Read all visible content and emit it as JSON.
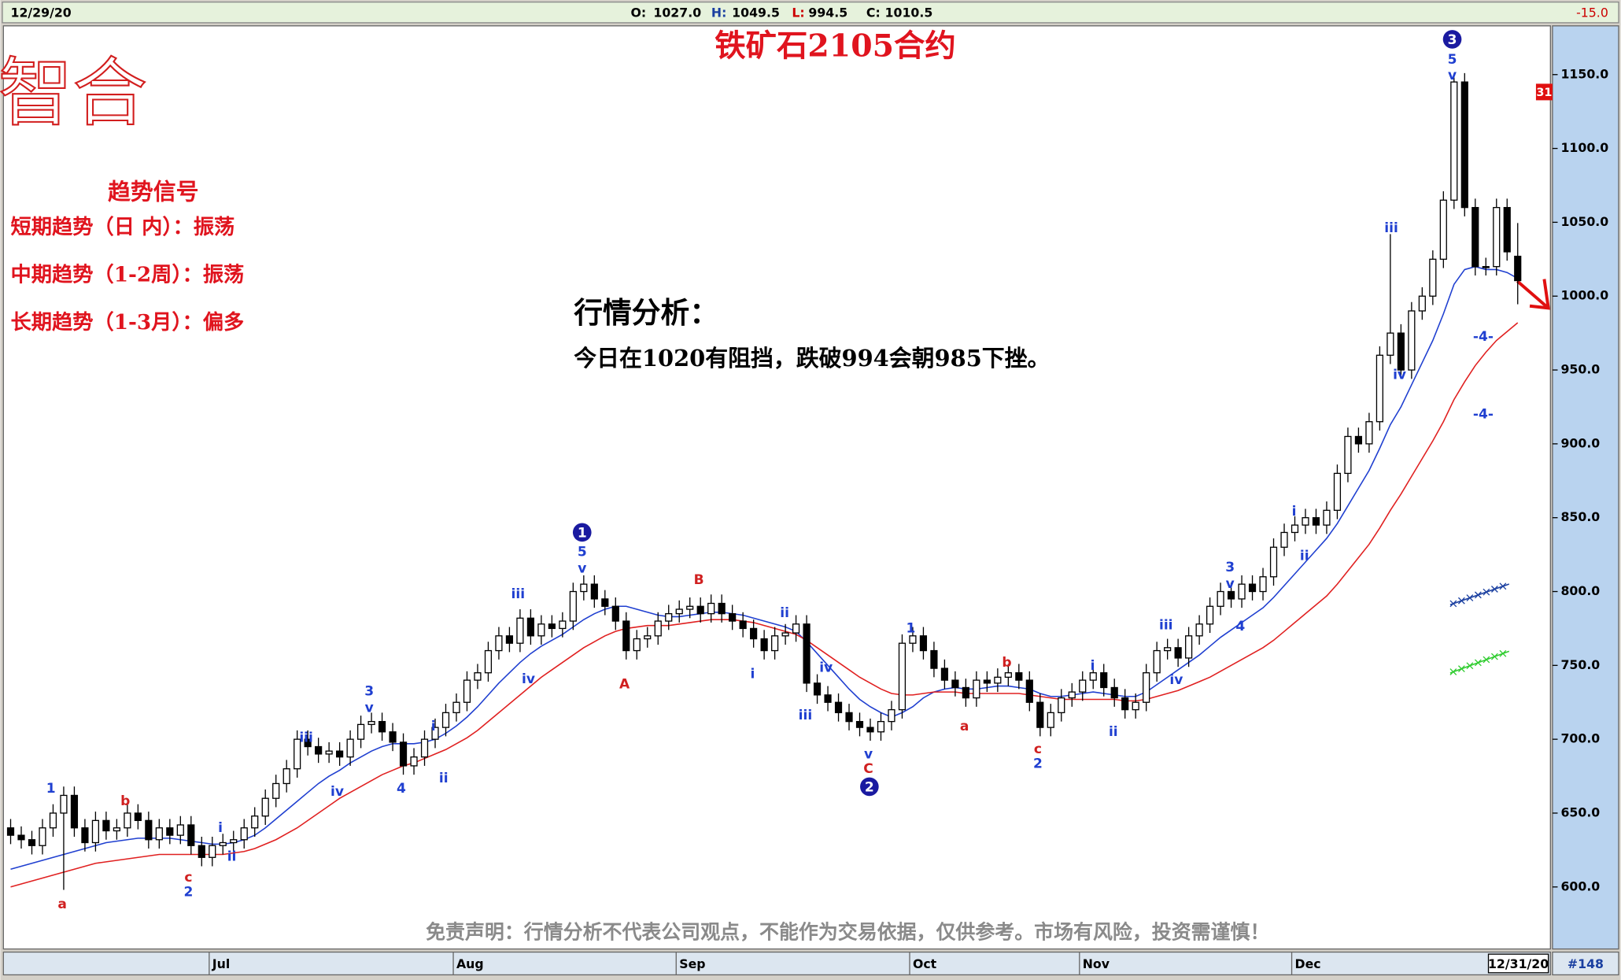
{
  "header": {
    "date": "12/29/20",
    "fields": [
      {
        "label": "O:",
        "value": "1027.0"
      },
      {
        "label": "H:",
        "value": "1049.5"
      },
      {
        "label": "L:",
        "value": "994.5"
      },
      {
        "label": "C:",
        "value": "1010.5"
      }
    ],
    "change": "-15.0"
  },
  "logo": "智合",
  "signals": {
    "title": "趋势信号",
    "items": [
      "短期趋势（日 内）：振荡",
      "中期趋势（1-2周）：振荡",
      "长期趋势（1-3月）：偏多"
    ]
  },
  "analysis": {
    "title": "行情分析：",
    "text": "今日在1020有阻挡，跌破994会朝985下挫。"
  },
  "disclaimer": "免责声明：行情分析不代表公司观点，不能作为交易依据，仅供参考。市场有风险，投资需谨慎！",
  "chart_data": {
    "type": "candlestick",
    "title": "铁矿石2105合约",
    "price_tag": "31",
    "end_date": "12/31/20",
    "bar_count": "#148",
    "up_color": "#ffffff",
    "down_color": "#000000",
    "ylim": [
      558,
      1183
    ],
    "yticks": [
      {
        "value": 600,
        "label": "600.0"
      },
      {
        "value": 650,
        "label": "650.0"
      },
      {
        "value": 700,
        "label": "700.0"
      },
      {
        "value": 750,
        "label": "750.0"
      },
      {
        "value": 800,
        "label": "800.0"
      },
      {
        "value": 850,
        "label": "850.0"
      },
      {
        "value": 900,
        "label": "900.0"
      },
      {
        "value": 950,
        "label": "950.0"
      },
      {
        "value": 1000,
        "label": "1000.0"
      },
      {
        "value": 1050,
        "label": "1050.0"
      },
      {
        "value": 1100,
        "label": "1100.0"
      },
      {
        "value": 1150,
        "label": "1150.0"
      }
    ],
    "categories": [
      null,
      null,
      null,
      null,
      null,
      null,
      null,
      null,
      null,
      null,
      null,
      null,
      null,
      null,
      null,
      null,
      null,
      null,
      null,
      "Jul",
      null,
      null,
      null,
      null,
      null,
      null,
      null,
      null,
      null,
      null,
      null,
      null,
      null,
      null,
      null,
      null,
      null,
      null,
      null,
      null,
      null,
      null,
      "Aug",
      null,
      null,
      null,
      null,
      null,
      null,
      null,
      null,
      null,
      null,
      null,
      null,
      null,
      null,
      null,
      null,
      null,
      null,
      null,
      null,
      "Sep",
      null,
      null,
      null,
      null,
      null,
      null,
      null,
      null,
      null,
      null,
      null,
      null,
      null,
      null,
      null,
      null,
      null,
      null,
      null,
      null,
      null,
      "Oct",
      null,
      null,
      null,
      null,
      null,
      null,
      null,
      null,
      null,
      null,
      null,
      null,
      null,
      null,
      null,
      "Nov",
      null,
      null,
      null,
      null,
      null,
      null,
      null,
      null,
      null,
      null,
      null,
      null,
      null,
      null,
      null,
      null,
      null,
      null,
      null,
      "Dec",
      null,
      null,
      null,
      null,
      null,
      null,
      null,
      null,
      null,
      null,
      null,
      null,
      null,
      null,
      null,
      null,
      null,
      null,
      null,
      null,
      null
    ],
    "open": [
      640,
      635,
      632,
      628,
      640,
      650,
      662,
      640,
      630,
      645,
      638,
      640,
      650,
      645,
      632,
      640,
      635,
      642,
      628,
      620,
      628,
      630,
      632,
      640,
      648,
      660,
      670,
      680,
      700,
      695,
      690,
      692,
      688,
      700,
      710,
      712,
      705,
      698,
      682,
      688,
      700,
      708,
      718,
      725,
      740,
      745,
      760,
      770,
      765,
      782,
      770,
      778,
      775,
      780,
      800,
      805,
      795,
      790,
      780,
      760,
      768,
      770,
      780,
      785,
      788,
      790,
      785,
      792,
      785,
      780,
      775,
      768,
      760,
      770,
      772,
      778,
      738,
      730,
      725,
      718,
      712,
      708,
      705,
      712,
      720,
      765,
      770,
      760,
      748,
      740,
      735,
      728,
      740,
      738,
      742,
      745,
      740,
      725,
      708,
      718,
      728,
      732,
      740,
      745,
      735,
      728,
      720,
      725,
      745,
      760,
      762,
      755,
      770,
      778,
      790,
      800,
      795,
      805,
      800,
      810,
      830,
      840,
      845,
      850,
      845,
      855,
      880,
      905,
      900,
      915,
      960,
      975,
      950,
      990,
      1000,
      1025,
      1065,
      1145,
      1060,
      1020,
      1020,
      1060,
      1027
    ],
    "high": [
      646,
      641,
      638,
      646,
      656,
      668,
      668,
      646,
      651,
      651,
      646,
      656,
      656,
      651,
      646,
      646,
      648,
      648,
      634,
      634,
      636,
      638,
      646,
      654,
      666,
      676,
      686,
      706,
      706,
      701,
      698,
      698,
      706,
      716,
      718,
      718,
      711,
      704,
      694,
      706,
      714,
      724,
      731,
      746,
      751,
      766,
      776,
      776,
      788,
      788,
      784,
      784,
      786,
      806,
      811,
      811,
      801,
      796,
      786,
      774,
      776,
      786,
      791,
      794,
      796,
      796,
      798,
      798,
      791,
      786,
      781,
      774,
      776,
      778,
      784,
      784,
      744,
      736,
      731,
      724,
      718,
      714,
      718,
      726,
      771,
      776,
      776,
      766,
      754,
      746,
      741,
      746,
      746,
      748,
      751,
      751,
      746,
      731,
      724,
      734,
      738,
      746,
      751,
      751,
      741,
      734,
      731,
      751,
      766,
      768,
      768,
      776,
      784,
      796,
      806,
      806,
      811,
      811,
      816,
      836,
      846,
      851,
      856,
      856,
      861,
      886,
      911,
      911,
      921,
      966,
      1042,
      981,
      996,
      1006,
      1031,
      1071,
      1148,
      1151,
      1066,
      1026,
      1066,
      1066,
      1049.5
    ],
    "low": [
      629,
      626,
      622,
      622,
      634,
      598,
      634,
      624,
      624,
      632,
      632,
      634,
      639,
      626,
      626,
      629,
      629,
      622,
      614,
      614,
      622,
      624,
      626,
      634,
      642,
      654,
      664,
      674,
      689,
      684,
      684,
      682,
      682,
      694,
      704,
      699,
      692,
      676,
      676,
      682,
      694,
      702,
      712,
      719,
      734,
      739,
      754,
      759,
      759,
      764,
      764,
      769,
      769,
      774,
      794,
      789,
      784,
      774,
      754,
      754,
      762,
      764,
      774,
      779,
      782,
      779,
      779,
      779,
      774,
      769,
      762,
      754,
      754,
      764,
      766,
      732,
      724,
      719,
      712,
      706,
      702,
      699,
      699,
      706,
      714,
      759,
      754,
      742,
      734,
      729,
      722,
      722,
      732,
      732,
      736,
      734,
      719,
      702,
      702,
      712,
      722,
      726,
      734,
      729,
      722,
      714,
      714,
      719,
      739,
      754,
      749,
      749,
      764,
      772,
      784,
      789,
      789,
      794,
      794,
      804,
      824,
      834,
      839,
      839,
      839,
      849,
      874,
      894,
      894,
      909,
      954,
      944,
      944,
      984,
      994,
      1019,
      1059,
      1054,
      1014,
      1014,
      1014,
      1024,
      994.5
    ],
    "close": [
      635,
      632,
      628,
      640,
      650,
      662,
      640,
      630,
      645,
      638,
      640,
      650,
      645,
      632,
      640,
      635,
      642,
      628,
      620,
      628,
      630,
      632,
      640,
      648,
      660,
      670,
      680,
      700,
      695,
      690,
      692,
      688,
      700,
      710,
      712,
      705,
      698,
      682,
      688,
      700,
      708,
      718,
      725,
      740,
      745,
      760,
      770,
      765,
      782,
      770,
      778,
      775,
      780,
      800,
      805,
      795,
      790,
      780,
      760,
      768,
      770,
      780,
      785,
      788,
      790,
      785,
      792,
      785,
      780,
      775,
      768,
      760,
      770,
      772,
      778,
      738,
      730,
      725,
      718,
      712,
      708,
      705,
      712,
      720,
      765,
      770,
      760,
      748,
      740,
      735,
      728,
      740,
      738,
      742,
      745,
      740,
      725,
      708,
      718,
      728,
      732,
      740,
      745,
      735,
      728,
      720,
      725,
      745,
      760,
      762,
      755,
      770,
      778,
      790,
      800,
      795,
      805,
      800,
      810,
      830,
      840,
      845,
      850,
      845,
      855,
      880,
      905,
      900,
      915,
      960,
      975,
      950,
      990,
      1000,
      1025,
      1065,
      1145,
      1060,
      1020,
      1020,
      1060,
      1030,
      1010.5
    ],
    "lines": [
      {
        "color": "#1f3fd0",
        "values": [
          612,
          614,
          616,
          618,
          620,
          622,
          624,
          626,
          628,
          630,
          631,
          632,
          633,
          633,
          633,
          633,
          632,
          631,
          630,
          629,
          629,
          630,
          632,
          635,
          640,
          646,
          652,
          658,
          664,
          670,
          675,
          679,
          684,
          688,
          692,
          695,
          697,
          697,
          697,
          698,
          700,
          704,
          709,
          715,
          722,
          730,
          738,
          745,
          752,
          758,
          763,
          767,
          771,
          776,
          781,
          785,
          788,
          790,
          790,
          788,
          786,
          784,
          783,
          783,
          784,
          785,
          786,
          786,
          785,
          784,
          782,
          780,
          778,
          776,
          773,
          766,
          758,
          750,
          742,
          734,
          727,
          722,
          718,
          715,
          718,
          722,
          728,
          732,
          734,
          735,
          734,
          734,
          735,
          736,
          736,
          735,
          734,
          731,
          729,
          729,
          730,
          731,
          732,
          731,
          730,
          729,
          729,
          732,
          737,
          742,
          747,
          752,
          757,
          763,
          769,
          774,
          779,
          784,
          789,
          796,
          804,
          812,
          820,
          828,
          836,
          846,
          858,
          870,
          882,
          897,
          913,
          925,
          940,
          955,
          970,
          988,
          1008,
          1018,
          1020,
          1018,
          1018,
          1016,
          1012
        ]
      },
      {
        "color": "#e02020",
        "values": [
          600,
          602,
          604,
          606,
          608,
          610,
          612,
          614,
          616,
          617,
          618,
          619,
          620,
          621,
          622,
          622,
          622,
          622,
          622,
          622,
          622,
          623,
          624,
          626,
          629,
          632,
          636,
          640,
          645,
          650,
          655,
          660,
          664,
          668,
          672,
          676,
          679,
          682,
          684,
          687,
          690,
          693,
          697,
          701,
          706,
          712,
          718,
          724,
          730,
          736,
          742,
          747,
          752,
          757,
          762,
          766,
          770,
          773,
          775,
          776,
          777,
          777,
          777,
          778,
          779,
          780,
          781,
          781,
          781,
          780,
          779,
          777,
          775,
          773,
          771,
          767,
          762,
          757,
          752,
          747,
          742,
          738,
          734,
          731,
          730,
          730,
          731,
          732,
          732,
          732,
          731,
          731,
          731,
          731,
          731,
          731,
          730,
          729,
          728,
          727,
          727,
          727,
          727,
          727,
          727,
          726,
          726,
          727,
          729,
          731,
          733,
          736,
          739,
          742,
          746,
          750,
          754,
          758,
          762,
          767,
          773,
          779,
          785,
          791,
          797,
          805,
          814,
          823,
          832,
          843,
          855,
          866,
          878,
          890,
          902,
          915,
          930,
          942,
          953,
          962,
          970,
          976,
          982
        ]
      }
    ],
    "annotations": [
      {
        "text": "1",
        "color": "#1f3fd0"
      },
      {
        "text": "a",
        "color": "#d02020"
      },
      {
        "text": "b",
        "color": "#d02020"
      },
      {
        "text": "c",
        "color": "#d02020"
      },
      {
        "text": "2",
        "color": "#1f3fd0"
      },
      {
        "text": "i",
        "color": "#1f3fd0"
      },
      {
        "text": "ii",
        "color": "#1f3fd0"
      },
      {
        "text": "iii",
        "color": "#1f3fd0"
      },
      {
        "text": "iv",
        "color": "#1f3fd0"
      },
      {
        "text": "3",
        "color": "#1f3fd0"
      },
      {
        "text": "v",
        "color": "#1f3fd0"
      },
      {
        "text": "4",
        "color": "#1f3fd0"
      },
      {
        "text": "i",
        "color": "#1f3fd0"
      },
      {
        "text": "ii",
        "color": "#1f3fd0"
      },
      {
        "text": "iii",
        "color": "#1f3fd0"
      },
      {
        "text": "iv",
        "color": "#1f3fd0"
      },
      {
        "text": "1",
        "color": "#1a1aa0",
        "circled": true
      },
      {
        "text": "5",
        "color": "#1f3fd0"
      },
      {
        "text": "v",
        "color": "#1f3fd0"
      },
      {
        "text": "A",
        "color": "#d02020"
      },
      {
        "text": "B",
        "color": "#d02020"
      },
      {
        "text": "i",
        "color": "#1f3fd0"
      },
      {
        "text": "ii",
        "color": "#1f3fd0"
      },
      {
        "text": "iv",
        "color": "#1f3fd0"
      },
      {
        "text": "iii",
        "color": "#1f3fd0"
      },
      {
        "text": "v",
        "color": "#1f3fd0"
      },
      {
        "text": "C",
        "color": "#d02020"
      },
      {
        "text": "2",
        "color": "#1a1aa0",
        "circled": true
      },
      {
        "text": "1",
        "color": "#1f3fd0"
      },
      {
        "text": "b",
        "color": "#d02020"
      },
      {
        "text": "a",
        "color": "#d02020"
      },
      {
        "text": "c",
        "color": "#d02020"
      },
      {
        "text": "2",
        "color": "#1f3fd0"
      },
      {
        "text": "i",
        "color": "#1f3fd0"
      },
      {
        "text": "ii",
        "color": "#1f3fd0"
      },
      {
        "text": "iii",
        "color": "#1f3fd0"
      },
      {
        "text": "iv",
        "color": "#1f3fd0"
      },
      {
        "text": "3",
        "color": "#1f3fd0"
      },
      {
        "text": "v",
        "color": "#1f3fd0"
      },
      {
        "text": "4",
        "color": "#1f3fd0"
      },
      {
        "text": "i",
        "color": "#1f3fd0"
      },
      {
        "text": "ii",
        "color": "#1f3fd0"
      },
      {
        "text": "iii",
        "color": "#1f3fd0"
      },
      {
        "text": "iv",
        "color": "#1f3fd0"
      },
      {
        "text": "3",
        "color": "#1a1aa0",
        "circled": true
      },
      {
        "text": "5",
        "color": "#1f3fd0"
      },
      {
        "text": "v",
        "color": "#1f3fd0"
      },
      {
        "text": "-4-",
        "color": "#1f3fd0"
      },
      {
        "text": "-4-",
        "color": "#1f3fd0"
      }
    ]
  }
}
